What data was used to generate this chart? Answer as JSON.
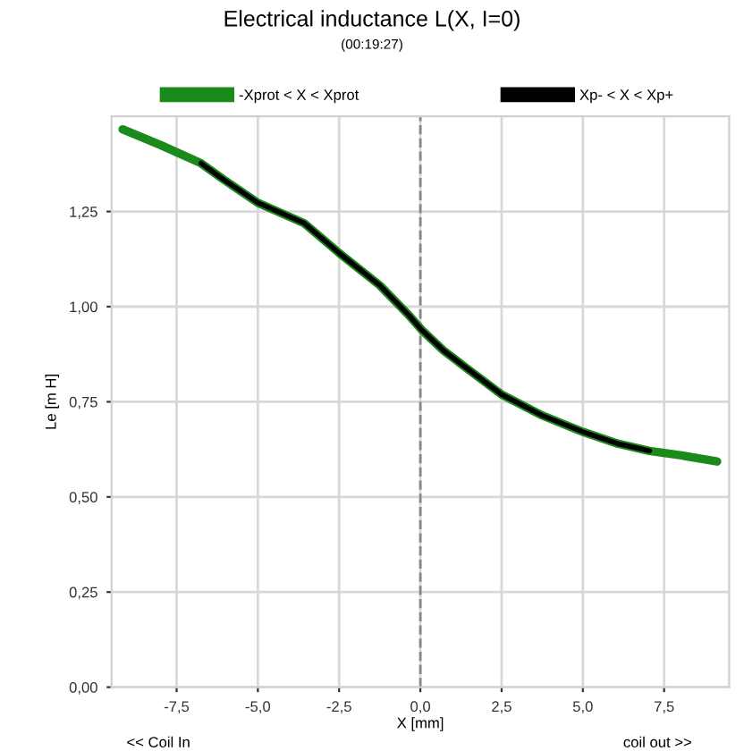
{
  "chart_data": {
    "type": "line",
    "title": "Electrical inductance L(X, I=0)",
    "subtitle": "(00:19:27)",
    "xlabel": "X [mm]",
    "ylabel": "Le [m H]",
    "series": [
      {
        "name": "-Xprot < X < Xprot",
        "color": "#1a8a1a",
        "x": [
          -9.16,
          -8.0,
          -6.75,
          -6.07,
          -5.0,
          -3.57,
          -2.5,
          -1.25,
          -0.36,
          0.04,
          0.71,
          1.43,
          2.5,
          3.75,
          5.0,
          6.07,
          7.05,
          8.04,
          9.13
        ],
        "values": [
          1.466,
          1.425,
          1.377,
          1.335,
          1.273,
          1.219,
          1.141,
          1.056,
          0.978,
          0.939,
          0.885,
          0.838,
          0.769,
          0.714,
          0.671,
          0.64,
          0.621,
          0.609,
          0.593
        ]
      },
      {
        "name": "Xp- < X < Xp+",
        "color": "#000000",
        "x": [
          -6.75,
          -6.07,
          -5.0,
          -3.57,
          -2.5,
          -1.25,
          -0.36,
          0.04,
          0.71,
          1.43,
          2.5,
          3.75,
          5.0,
          6.07,
          7.05
        ],
        "values": [
          1.377,
          1.335,
          1.273,
          1.219,
          1.141,
          1.056,
          0.978,
          0.939,
          0.885,
          0.838,
          0.769,
          0.714,
          0.671,
          0.64,
          0.621
        ]
      }
    ],
    "xlim": [
      -9.5,
      9.5
    ],
    "ylim": [
      0,
      1.5
    ],
    "xticks": [
      {
        "value": -7.5,
        "label": "-7,5"
      },
      {
        "value": -5,
        "label": "-5,0"
      },
      {
        "value": -2.5,
        "label": "-2,5"
      },
      {
        "value": 0,
        "label": "0,0"
      },
      {
        "value": 2.5,
        "label": "2,5"
      },
      {
        "value": 5,
        "label": "5,0"
      },
      {
        "value": 7.5,
        "label": "7,5"
      }
    ],
    "yticks": [
      {
        "value": 0,
        "label": "0,00"
      },
      {
        "value": 0.25,
        "label": "0,25"
      },
      {
        "value": 0.5,
        "label": "0,50"
      },
      {
        "value": 0.75,
        "label": "0,75"
      },
      {
        "value": 1.0,
        "label": "1,00"
      },
      {
        "value": 1.25,
        "label": "1,25"
      }
    ],
    "ref_lines": [
      {
        "axis": "x",
        "value": 0,
        "color": "#888888",
        "line_style": "dashed"
      }
    ],
    "annotations": [
      "<< Coil In",
      "coil out >>"
    ],
    "grid": true,
    "legend": "top",
    "marker": "none",
    "line_style": "solid"
  }
}
